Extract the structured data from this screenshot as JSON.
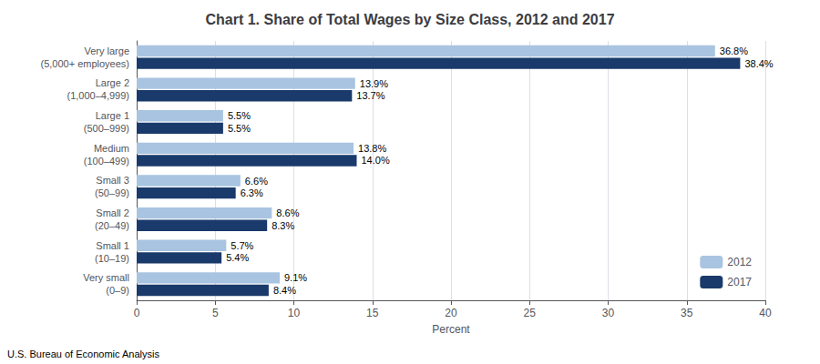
{
  "chart_data": {
    "type": "bar",
    "orientation": "horizontal",
    "title": "Chart 1. Share of Total Wages by Size Class, 2012 and 2017",
    "xlabel": "Percent",
    "annotations": [
      "U.S. Bureau of Economic Analysis"
    ],
    "categories": [
      "Very large\n(5,000+ employees)",
      "Large 2\n(1,000–4,999)",
      "Large 1\n(500–999)",
      "Medium\n(100–499)",
      "Small 3\n(50–99)",
      "Small 2\n(20–49)",
      "Small 1\n(10–19)",
      "Very small\n(0–9)"
    ],
    "series": [
      {
        "name": "2012",
        "color": "#a8c4e0",
        "values": [
          36.8,
          13.9,
          5.5,
          13.8,
          6.6,
          8.6,
          5.7,
          9.1
        ],
        "value_labels": [
          "36.8%",
          "13.9%",
          "5.5%",
          "13.8%",
          "6.6%",
          "8.6%",
          "5.7%",
          "9.1%"
        ]
      },
      {
        "name": "2017",
        "color": "#1a3a6b",
        "values": [
          38.4,
          13.7,
          5.5,
          14.0,
          6.3,
          8.3,
          5.4,
          8.4
        ],
        "value_labels": [
          "38.4%",
          "13.7%",
          "5.5%",
          "14.0%",
          "6.3%",
          "8.3%",
          "5.4%",
          "8.4%"
        ]
      }
    ],
    "xlim": [
      0,
      40
    ],
    "xticks": [
      0,
      5,
      10,
      15,
      20,
      25,
      30,
      35,
      40
    ],
    "grid": true,
    "legend": "lower right",
    "data_labels": true
  }
}
